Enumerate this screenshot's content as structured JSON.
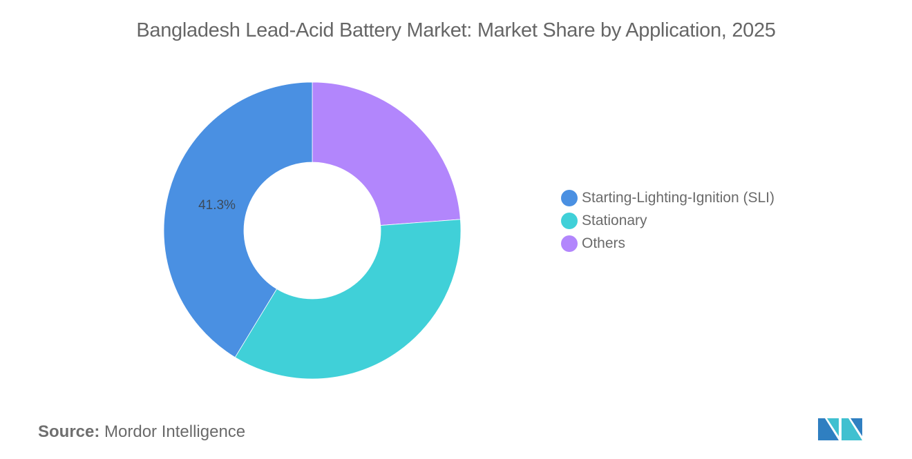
{
  "title": "Bangladesh Lead-Acid Battery Market: Market Share by Application, 2025",
  "chart_data": {
    "type": "pie",
    "subtype": "donut",
    "title": "Bangladesh Lead-Acid Battery Market: Market Share by Application, 2025",
    "categories": [
      "Starting-Lighting-Ignition (SLI)",
      "Stationary",
      "Others"
    ],
    "values": [
      41.3,
      34.9,
      23.8
    ],
    "unit": "%",
    "colors": [
      "#4a90e2",
      "#40d0d8",
      "#b286fc"
    ],
    "data_labels": [
      {
        "category": "Starting-Lighting-Ignition (SLI)",
        "text": "41.3%"
      }
    ],
    "legend_position": "right",
    "start_angle_deg": 0,
    "direction": "counterclockwise-from-top for SLI; Others clockwise from top"
  },
  "slice_label": "41.3%",
  "legend": {
    "items": [
      {
        "label": "Starting-Lighting-Ignition (SLI)",
        "color": "#4a90e2"
      },
      {
        "label": "Stationary",
        "color": "#40d0d8"
      },
      {
        "label": "Others",
        "color": "#b286fc"
      }
    ]
  },
  "source": {
    "label": "Source:",
    "value": "Mordor Intelligence"
  },
  "logo": {
    "icon": "mordor-intelligence-logo-icon"
  }
}
